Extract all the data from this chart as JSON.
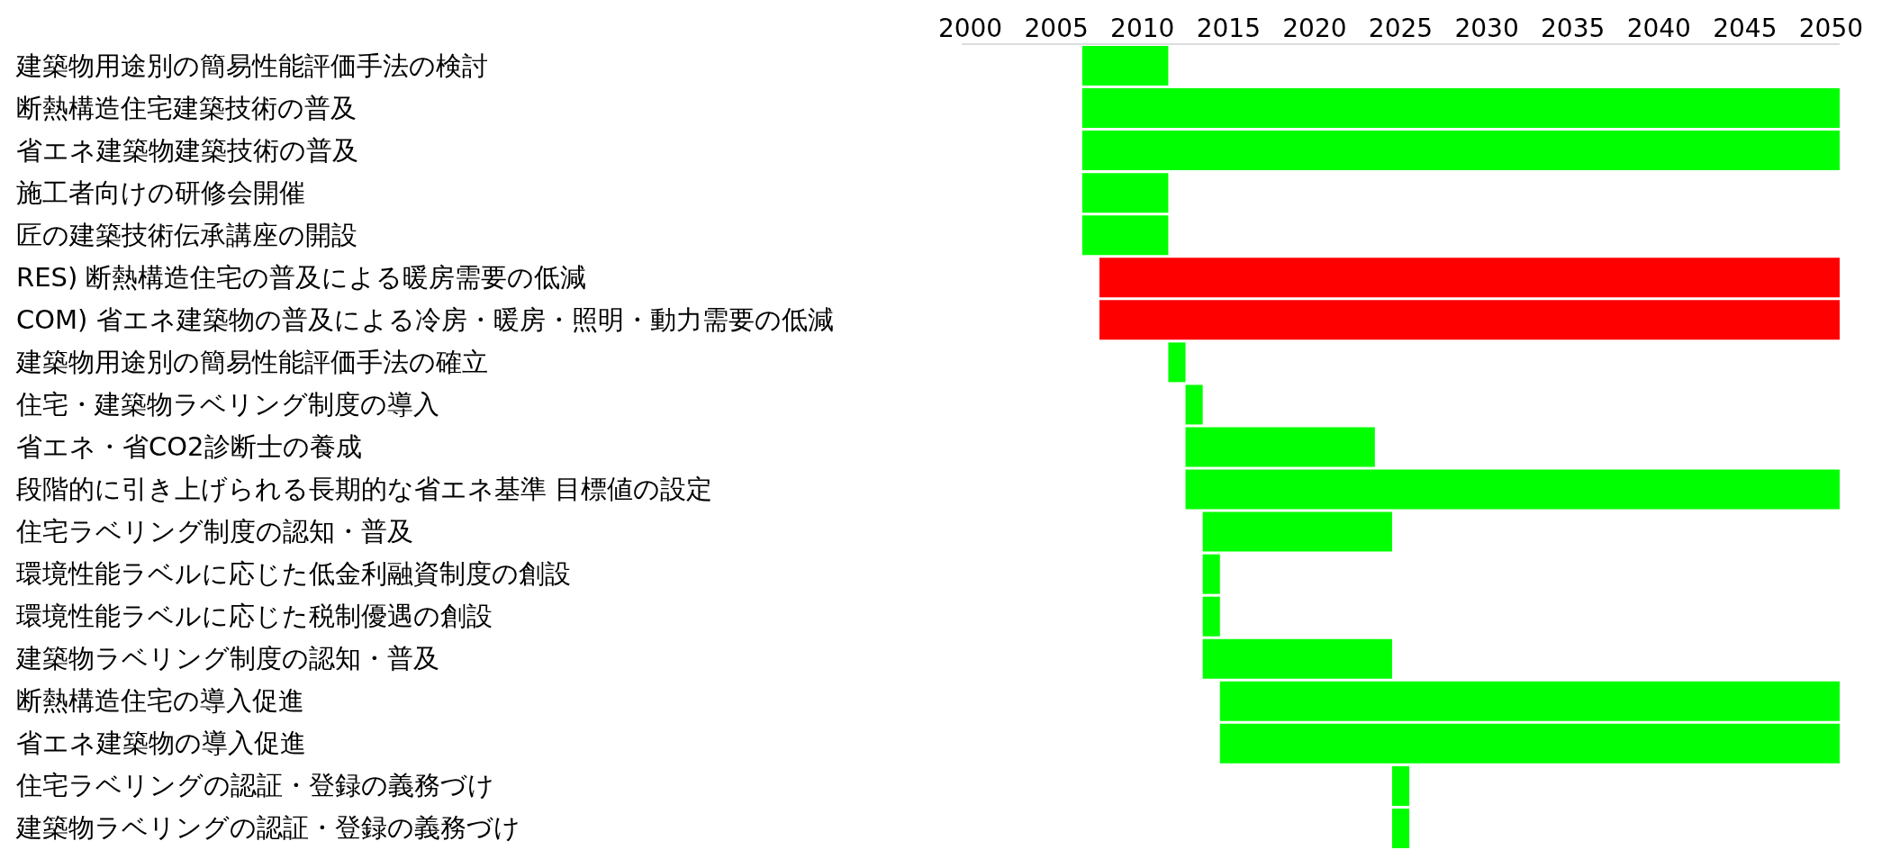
{
  "chart_data": {
    "type": "bar",
    "orientation": "horizontal",
    "categories": [
      "建築物用途別の簡易性能評価手法の検討",
      "断熱構造住宅建築技術の普及",
      "省エネ建築物建築技術の普及",
      "施工者向けの研修会開催",
      "匠の建築技術伝承講座の開設",
      "RES) 断熱構造住宅の普及による暖房需要の低減",
      "COM) 省エネ建築物の普及による冷房・暖房・照明・動力需要の低減",
      "建築物用途別の簡易性能評価手法の確立",
      "住宅・建築物ラベリング制度の導入",
      "省エネ・省CO2診断士の養成",
      "段階的に引き上げられる長期的な省エネ基準 目標値の設定",
      "住宅ラベリング制度の認知・普及",
      "環境性能ラベルに応じた低金利融資制度の創設",
      "環境性能ラベルに応じた税制優遇の創設",
      "建築物ラベリング制度の認知・普及",
      "断熱構造住宅の導入促進",
      "省エネ建築物の導入促進",
      "住宅ラベリングの認証・登録の義務づけ",
      "建築物ラベリングの認証・登録の義務づけ"
    ],
    "base": [
      2006.5,
      2006.5,
      2006.5,
      2006.5,
      2006.5,
      2007.5,
      2007.5,
      2011.5,
      2012.5,
      2012.5,
      2012.5,
      2013.5,
      2013.5,
      2013.5,
      2013.5,
      2014.5,
      2014.5,
      2024.5,
      2024.5
    ],
    "values": [
      5,
      44,
      44,
      5,
      5,
      43,
      43,
      1,
      1,
      11,
      38,
      11,
      1,
      1,
      11,
      36,
      36,
      1,
      1
    ],
    "colors": [
      "#00ff00",
      "#00ff00",
      "#00ff00",
      "#00ff00",
      "#00ff00",
      "#ff0000",
      "#ff0000",
      "#00ff00",
      "#00ff00",
      "#00ff00",
      "#00ff00",
      "#00ff00",
      "#00ff00",
      "#00ff00",
      "#00ff00",
      "#00ff00",
      "#00ff00",
      "#00ff00",
      "#00ff00"
    ],
    "xlim": [
      1999.5,
      2050.5
    ],
    "xticks": [
      2000,
      2005,
      2010,
      2015,
      2020,
      2025,
      2030,
      2035,
      2040,
      2045,
      2050
    ]
  }
}
